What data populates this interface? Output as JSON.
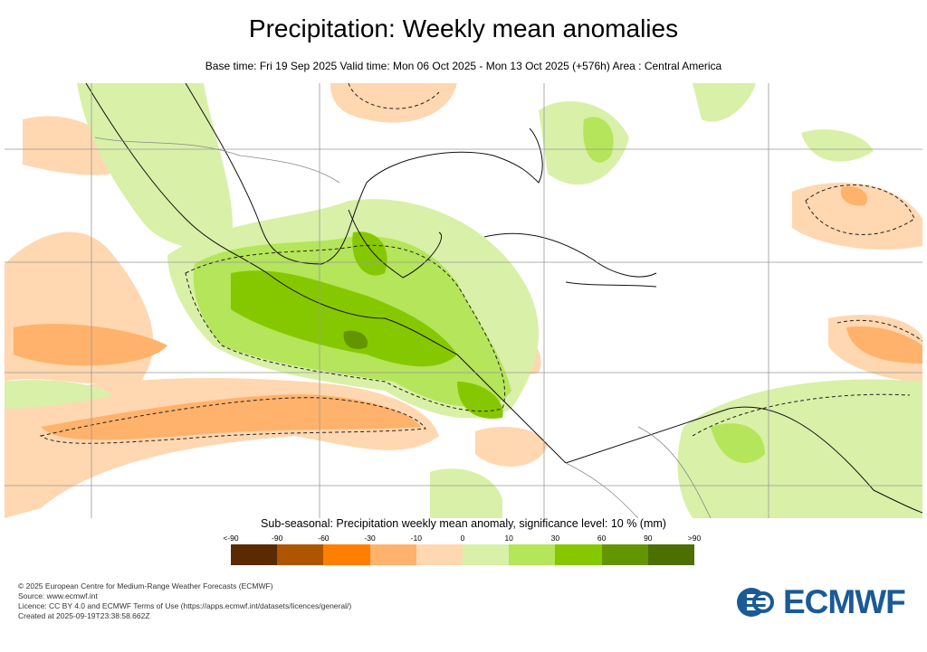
{
  "title": "Precipitation: Weekly mean anomalies",
  "subtitle": "Base time: Fri 19 Sep 2025 Valid time: Mon 06 Oct 2025 - Mon 13 Oct 2025 (+576h) Area : Central America",
  "legend": {
    "title": "Sub-seasonal: Precipitation weekly mean anomaly, significance level: 10 % (mm)",
    "ticks": [
      "<-90",
      "-90",
      "-60",
      "-30",
      "-10",
      "0",
      "10",
      "30",
      "60",
      "90",
      ">90"
    ],
    "colors": [
      "#5a2a00",
      "#ad5500",
      "#ff7f00",
      "#ffb26b",
      "#ffd7b0",
      "#d9f0a8",
      "#b5e55a",
      "#86c800",
      "#639500",
      "#4d6e00"
    ]
  },
  "footer": [
    "© 2025 European Centre for Medium-Range Weather Forecasts (ECMWF)",
    "Source: www.ecmwf.int",
    "Licence: CC BY 4.0 and ECMWF Terms of Use (https://apps.ecmwf.int/datasets/licences/general/)",
    "Created at 2025-09-19T23:38:58.662Z"
  ],
  "logo": {
    "text": "ECMWF",
    "color": "#1a5a96"
  }
}
